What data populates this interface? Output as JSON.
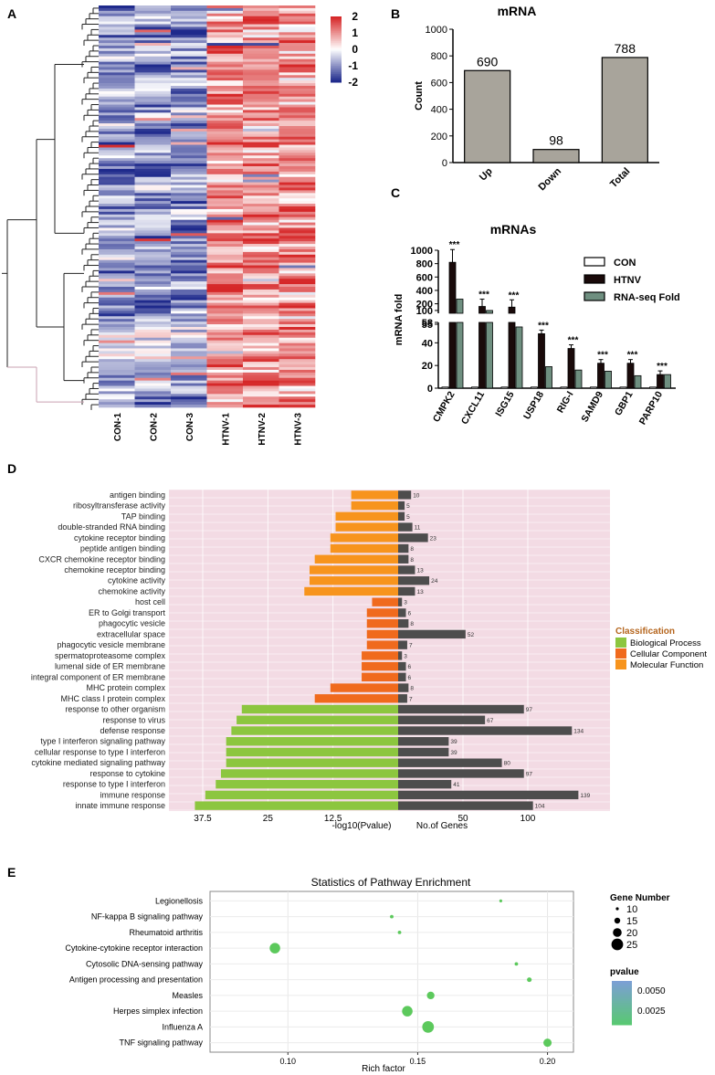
{
  "panels": {
    "A": "A",
    "B": "B",
    "C": "C",
    "D": "D",
    "E": "E"
  },
  "colors": {
    "heat_high": "#d62728",
    "heat_mid": "#ffffff",
    "heat_low": "#1f2a8c",
    "bar_gray": "#a8a49b",
    "htnv": "#1a0a0a",
    "rnaseq": "#6f8f80",
    "bp": "#8cc63f",
    "cc": "#f06a1d",
    "mf": "#f7941d",
    "genes": "#4d4d4d",
    "go_bg": "#f3dbe4",
    "dot": "#5cc95c",
    "pval_top": "#7b9fd4",
    "pval_bottom": "#59c873"
  },
  "chart_data": [
    {
      "panel": "A",
      "type": "heatmap",
      "columns": [
        "CON-1",
        "CON-2",
        "CON-3",
        "HTNV-1",
        "HTNV-2",
        "HTNV-3"
      ],
      "legend_ticks": [
        "2",
        "1",
        "0",
        "-1",
        "-2"
      ],
      "vrange": [
        -2,
        2
      ]
    },
    {
      "panel": "B",
      "type": "bar",
      "title": "mRNA",
      "categories": [
        "Up",
        "Down",
        "Total"
      ],
      "values": [
        690,
        98,
        788
      ],
      "value_labels": [
        "690",
        "98",
        "788"
      ],
      "ylabel": "Count",
      "ylim": [
        0,
        1000
      ],
      "yticks": [
        "0",
        "200",
        "400",
        "600",
        "800",
        "1000"
      ]
    },
    {
      "panel": "C",
      "type": "bar",
      "title": "mRNAs",
      "ylabel": "mRNA fold",
      "categories": [
        "CMPK2",
        "CXCL11",
        "ISG15",
        "USP18",
        "RIG-I",
        "SAMD9",
        "GBP1",
        "PARP10"
      ],
      "series": [
        {
          "name": "CON",
          "values": [
            1,
            1,
            1,
            1,
            1,
            1,
            1,
            1
          ]
        },
        {
          "name": "HTNV",
          "values": [
            820,
            160,
            150,
            48,
            35,
            22,
            22,
            12
          ]
        },
        {
          "name": "RNA-seq Fold",
          "values": [
            270,
            100,
            54,
            19,
            16,
            15,
            11,
            12
          ]
        }
      ],
      "significance": [
        "***",
        "***",
        "***",
        "***",
        "***",
        "***",
        "***",
        "***"
      ],
      "broken_axis": {
        "lower": [
          0,
          58
        ],
        "upper": [
          58,
          1000
        ]
      },
      "yticks_lower": [
        "0",
        "20",
        "40",
        "55"
      ],
      "yticks_upper": [
        "58",
        "100",
        "200",
        "400",
        "600",
        "800",
        "1000"
      ],
      "legend_position": "top-right"
    },
    {
      "panel": "D",
      "type": "bar",
      "terms": [
        {
          "term": "antigen binding",
          "class": "mf",
          "neglog10p": 9,
          "genes": 10
        },
        {
          "term": "ribosyltransferase activity",
          "class": "mf",
          "neglog10p": 9,
          "genes": 5
        },
        {
          "term": "TAP binding",
          "class": "mf",
          "neglog10p": 12,
          "genes": 5
        },
        {
          "term": "double-stranded RNA binding",
          "class": "mf",
          "neglog10p": 12,
          "genes": 11
        },
        {
          "term": "cytokine receptor binding",
          "class": "mf",
          "neglog10p": 13,
          "genes": 23
        },
        {
          "term": "peptide antigen binding",
          "class": "mf",
          "neglog10p": 13,
          "genes": 8
        },
        {
          "term": "CXCR chemokine receptor binding",
          "class": "mf",
          "neglog10p": 16,
          "genes": 8
        },
        {
          "term": "chemokine receptor binding",
          "class": "mf",
          "neglog10p": 17,
          "genes": 13
        },
        {
          "term": "cytokine activity",
          "class": "mf",
          "neglog10p": 17,
          "genes": 24
        },
        {
          "term": "chemokine activity",
          "class": "mf",
          "neglog10p": 18,
          "genes": 13
        },
        {
          "term": "host cell",
          "class": "cc",
          "neglog10p": 5,
          "genes": 3
        },
        {
          "term": "ER to Golgi transport",
          "class": "cc",
          "neglog10p": 6,
          "genes": 6
        },
        {
          "term": "phagocytic vesicle",
          "class": "cc",
          "neglog10p": 6,
          "genes": 8
        },
        {
          "term": "extracellular space",
          "class": "cc",
          "neglog10p": 6,
          "genes": 52
        },
        {
          "term": "phagocytic vesicle membrane",
          "class": "cc",
          "neglog10p": 6,
          "genes": 7
        },
        {
          "term": "spermatoproteasome complex",
          "class": "cc",
          "neglog10p": 7,
          "genes": 3
        },
        {
          "term": "lumenal side of ER membrane",
          "class": "cc",
          "neglog10p": 7,
          "genes": 6
        },
        {
          "term": "integral component of ER membrane",
          "class": "cc",
          "neglog10p": 7,
          "genes": 6
        },
        {
          "term": "MHC protein complex",
          "class": "cc",
          "neglog10p": 13,
          "genes": 8
        },
        {
          "term": "MHC class I protein complex",
          "class": "cc",
          "neglog10p": 16,
          "genes": 7
        },
        {
          "term": "response to other organism",
          "class": "bp",
          "neglog10p": 30,
          "genes": 97
        },
        {
          "term": "response to virus",
          "class": "bp",
          "neglog10p": 31,
          "genes": 67
        },
        {
          "term": "defense response",
          "class": "bp",
          "neglog10p": 32,
          "genes": 134
        },
        {
          "term": "type I interferon signaling pathway",
          "class": "bp",
          "neglog10p": 33,
          "genes": 39
        },
        {
          "term": "cellular response to type I interferon",
          "class": "bp",
          "neglog10p": 33,
          "genes": 39
        },
        {
          "term": "cytokine mediated signaling pathway",
          "class": "bp",
          "neglog10p": 33,
          "genes": 80
        },
        {
          "term": "response to cytokine",
          "class": "bp",
          "neglog10p": 34,
          "genes": 97
        },
        {
          "term": "response to type I interferon",
          "class": "bp",
          "neglog10p": 35,
          "genes": 41
        },
        {
          "term": "immune response",
          "class": "bp",
          "neglog10p": 37,
          "genes": 139
        },
        {
          "term": "innate immune response",
          "class": "bp",
          "neglog10p": 39,
          "genes": 104
        }
      ],
      "left_xticks": [
        "37.5",
        "25",
        "12.5"
      ],
      "right_xticks": [
        "50",
        "100"
      ],
      "left_xlabel": "-log10(Pvalue)",
      "right_xlabel": "No.of Genes",
      "legend_title": "Classification",
      "legend": [
        {
          "key": "bp",
          "label": "Biological Process"
        },
        {
          "key": "cc",
          "label": "Cellular Component"
        },
        {
          "key": "mf",
          "label": "Molecular Function"
        }
      ]
    },
    {
      "panel": "E",
      "type": "scatter",
      "title": "Statistics of Pathway Enrichment",
      "xlabel": "Rich factor",
      "xlim": [
        0.07,
        0.21
      ],
      "xticks": [
        "0.10",
        "0.15",
        "0.20"
      ],
      "points": [
        {
          "pathway": "Legionellosis",
          "rich": 0.182,
          "genes": 10,
          "pvalue": 0.0005
        },
        {
          "pathway": "NF-kappa B signaling pathway",
          "rich": 0.14,
          "genes": 11,
          "pvalue": 0.0005
        },
        {
          "pathway": "Rheumatoid arthritis",
          "rich": 0.143,
          "genes": 11,
          "pvalue": 0.0005
        },
        {
          "pathway": "Cytokine-cytokine receptor interaction",
          "rich": 0.095,
          "genes": 23,
          "pvalue": 0.0005
        },
        {
          "pathway": "Cytosolic DNA-sensing pathway",
          "rich": 0.188,
          "genes": 11,
          "pvalue": 0.0005
        },
        {
          "pathway": "Antigen processing and presentation",
          "rich": 0.193,
          "genes": 13,
          "pvalue": 0.0005
        },
        {
          "pathway": "Measles",
          "rich": 0.155,
          "genes": 18,
          "pvalue": 0.0005
        },
        {
          "pathway": "Herpes simplex infection",
          "rich": 0.146,
          "genes": 23,
          "pvalue": 0.0005
        },
        {
          "pathway": "Influenza A",
          "rich": 0.154,
          "genes": 25,
          "pvalue": 0.0005
        },
        {
          "pathway": "TNF signaling pathway",
          "rich": 0.2,
          "genes": 19,
          "pvalue": 0.0005
        }
      ],
      "size_legend_title": "Gene Number",
      "size_legend": [
        {
          "label": "10",
          "value": 10
        },
        {
          "label": "15",
          "value": 15
        },
        {
          "label": "20",
          "value": 20
        },
        {
          "label": "25",
          "value": 25
        }
      ],
      "color_legend_title": "pvalue",
      "color_legend_ticks": [
        "0.0050",
        "0.0025"
      ]
    }
  ]
}
